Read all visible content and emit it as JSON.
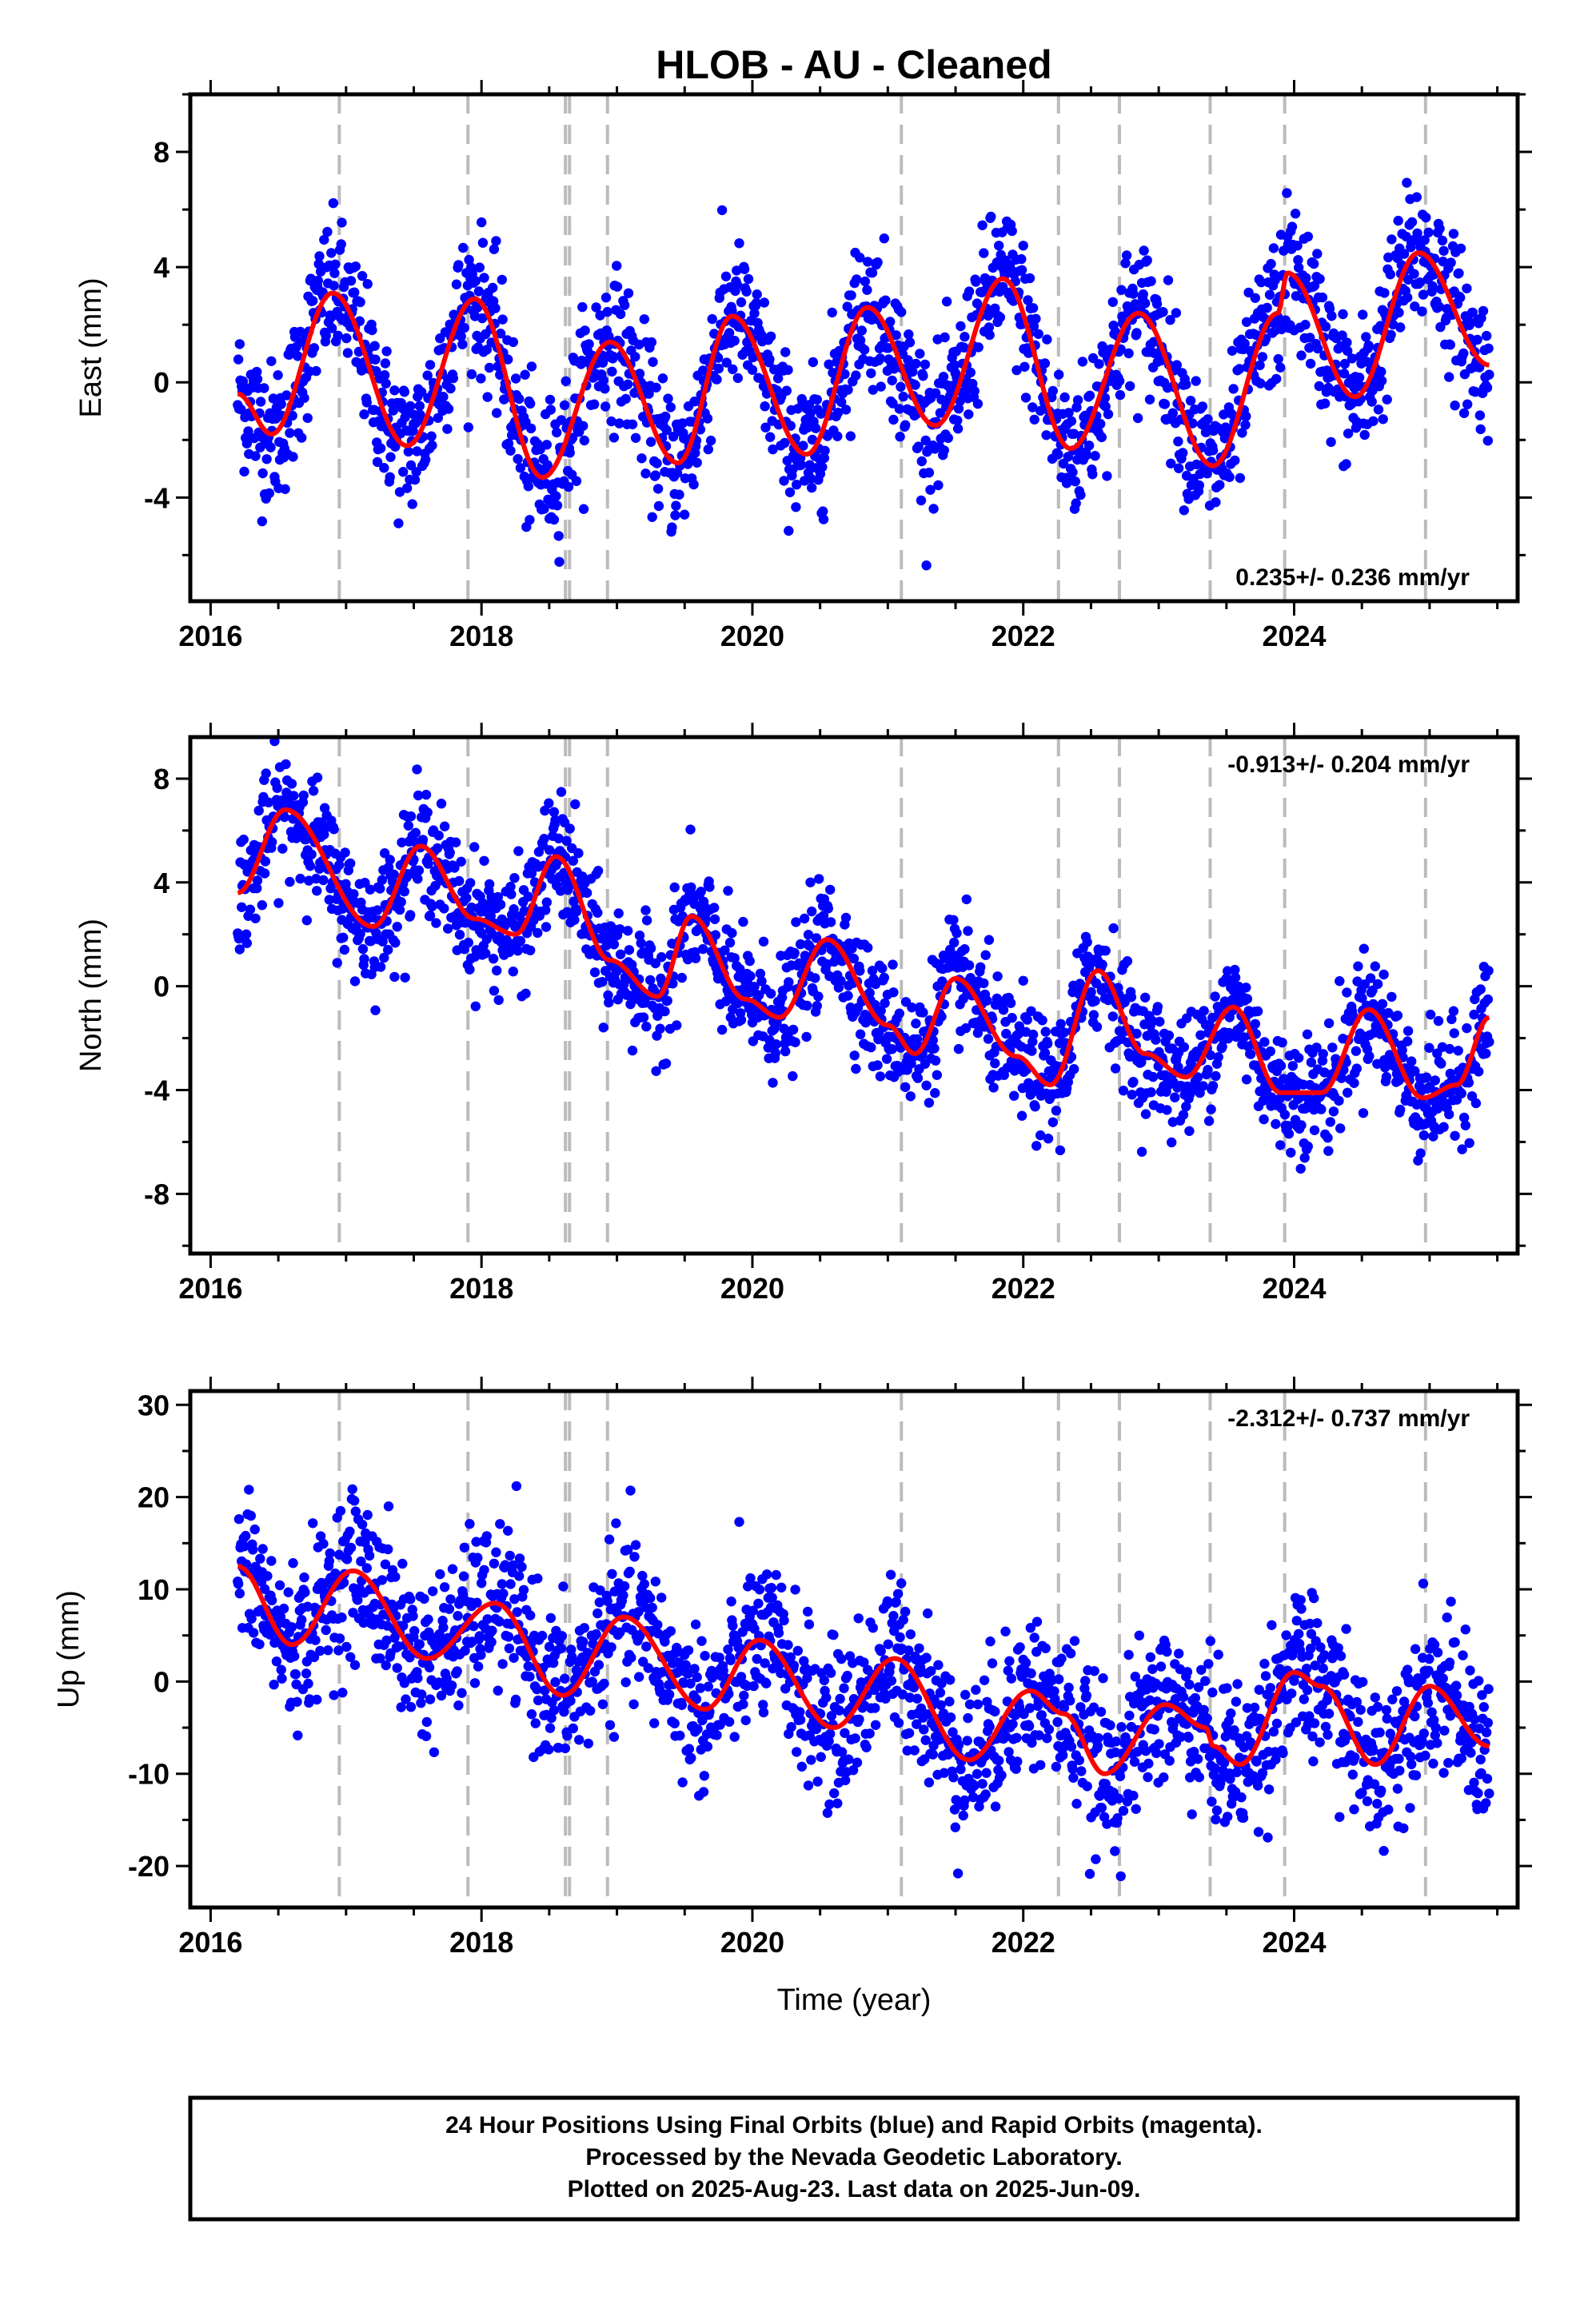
{
  "title": "HLOB  - AU - Cleaned",
  "xlabel": "Time (year)",
  "footer": [
    "24 Hour Positions Using Final Orbits (blue) and Rapid Orbits (magenta).",
    "Processed by the Nevada Geodetic Laboratory.",
    "Plotted on 2025-Aug-23. Last data on 2025-Jun-09."
  ],
  "colors": {
    "points": "#0000ff",
    "model": "#ff0000",
    "events": "#bbbbbb",
    "frame": "#000000"
  },
  "chart_data": [
    {
      "type": "scatter",
      "id": "east",
      "ylabel": "East (mm)",
      "rate": "0.235+/- 0.236 mm/yr",
      "rate_position": "bottom-right",
      "xlim": [
        2015.85,
        2025.65
      ],
      "ylim": [
        -7.6,
        10.0
      ],
      "xticks": [
        2016,
        2018,
        2020,
        2022,
        2024
      ],
      "yticks": [
        -4,
        0,
        4,
        8
      ],
      "data_span": [
        2016.2,
        2025.44
      ],
      "noise_sigma": 1.25,
      "events": [
        2016.95,
        2017.9,
        2018.62,
        2018.65,
        2018.93,
        2021.1,
        2022.26,
        2022.71,
        2023.38,
        2023.93,
        2024.97
      ],
      "model": {
        "x": [
          2016.2,
          2016.45,
          2016.9,
          2017.45,
          2017.95,
          2018.45,
          2018.95,
          2019.45,
          2019.85,
          2020.4,
          2020.85,
          2021.35,
          2021.85,
          2022.35,
          2022.85,
          2023.4,
          2023.88,
          2023.95,
          2024.45,
          2024.92,
          2025.44
        ],
        "y": [
          -0.4,
          -1.8,
          3.1,
          -2.2,
          2.9,
          -3.3,
          1.4,
          -2.8,
          2.3,
          -2.5,
          2.6,
          -1.5,
          3.6,
          -2.3,
          2.4,
          -2.9,
          2.4,
          3.8,
          -0.5,
          4.5,
          0.6
        ]
      }
    },
    {
      "type": "scatter",
      "id": "north",
      "ylabel": "North (mm)",
      "rate": "-0.913+/- 0.204 mm/yr",
      "rate_position": "top-right",
      "xlim": [
        2015.85,
        2025.65
      ],
      "ylim": [
        -10.3,
        9.6
      ],
      "xticks": [
        2016,
        2018,
        2020,
        2022,
        2024
      ],
      "yticks": [
        -8,
        -4,
        0,
        4,
        8
      ],
      "data_span": [
        2016.2,
        2025.44
      ],
      "noise_sigma": 1.15,
      "events": [
        2016.95,
        2017.9,
        2018.62,
        2018.65,
        2018.93,
        2021.1,
        2022.26,
        2022.71,
        2023.38,
        2023.93,
        2024.97
      ],
      "model": {
        "x": [
          2016.2,
          2016.55,
          2017.2,
          2017.55,
          2017.95,
          2018.25,
          2018.55,
          2018.95,
          2019.3,
          2019.55,
          2019.95,
          2020.2,
          2020.55,
          2021.0,
          2021.2,
          2021.5,
          2021.95,
          2022.2,
          2022.55,
          2022.9,
          2023.2,
          2023.55,
          2023.9,
          2024.2,
          2024.55,
          2024.95,
          2025.2,
          2025.44
        ],
        "y": [
          3.6,
          6.8,
          2.3,
          5.4,
          2.6,
          2.0,
          5.0,
          1.0,
          -0.4,
          2.7,
          -0.5,
          -1.2,
          1.8,
          -1.5,
          -2.6,
          0.3,
          -2.7,
          -3.8,
          0.6,
          -2.6,
          -3.5,
          -0.8,
          -4.1,
          -4.1,
          -0.9,
          -4.3,
          -3.8,
          -1.2
        ]
      }
    },
    {
      "type": "scatter",
      "id": "up",
      "ylabel": "Up (mm)",
      "rate": "-2.312+/- 0.737 mm/yr",
      "rate_position": "top-right",
      "xlim": [
        2015.85,
        2025.65
      ],
      "ylim": [
        -24.5,
        31.5
      ],
      "xticks": [
        2016,
        2018,
        2020,
        2022,
        2024
      ],
      "yticks": [
        -20,
        -10,
        0,
        10,
        20,
        30
      ],
      "data_span": [
        2016.2,
        2025.44
      ],
      "noise_sigma": 4.2,
      "events": [
        2016.95,
        2017.9,
        2018.62,
        2018.65,
        2018.93,
        2021.1,
        2022.26,
        2022.71,
        2023.38,
        2023.93,
        2024.97
      ],
      "model": {
        "x": [
          2016.2,
          2016.6,
          2017.05,
          2017.6,
          2018.1,
          2018.6,
          2019.05,
          2019.65,
          2020.05,
          2020.6,
          2021.05,
          2021.6,
          2022.05,
          2022.3,
          2022.6,
          2023.05,
          2023.35,
          2023.4,
          2023.6,
          2024.0,
          2024.2,
          2024.6,
          2025.0,
          2025.44
        ],
        "y": [
          12.5,
          4.0,
          12.0,
          2.5,
          8.5,
          -1.5,
          7.0,
          -3.0,
          4.5,
          -5.0,
          2.5,
          -8.5,
          -1.0,
          -3.5,
          -10.0,
          -2.5,
          -5.0,
          -7.0,
          -9.0,
          1.0,
          -0.5,
          -9.0,
          -0.5,
          -7.0
        ]
      }
    }
  ]
}
